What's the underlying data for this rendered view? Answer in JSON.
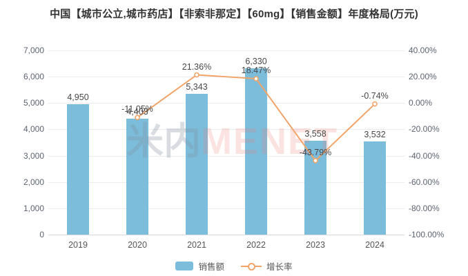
{
  "title": "中国【城市公立,城市药店】【非索非那定】【60mg】【销售金额】年度格局(万元)",
  "watermark": {
    "cn": "米内",
    "en": "MENET"
  },
  "legend": [
    {
      "label": "销售额"
    },
    {
      "label": "增长率"
    }
  ],
  "colors": {
    "bar": "#7cbddb",
    "line": "#f2a468",
    "marker_fill": "#ffffff",
    "title_text": "#333333",
    "axis_text": "#5c6370",
    "data_label": "#474747",
    "gridline": "#ebedf2",
    "axis_line": "#d4d8df"
  },
  "chart_data": {
    "type": "bar+line",
    "title": "中国【城市公立,城市药店】【非索非那定】【60mg】【销售金额】年度格局(万元)",
    "categories": [
      "2019",
      "2020",
      "2021",
      "2022",
      "2023",
      "2024"
    ],
    "series": [
      {
        "name": "销售额",
        "type": "bar",
        "axis": "left",
        "values": [
          4950,
          4403,
          5343,
          6330,
          3558,
          3532
        ],
        "labels": [
          "4,950",
          "4,403",
          "5,343",
          "6,330",
          "3,558",
          "3,532"
        ]
      },
      {
        "name": "增长率",
        "type": "line",
        "axis": "right",
        "values": [
          null,
          -11.05,
          21.36,
          18.47,
          -43.79,
          -0.74
        ],
        "labels": [
          null,
          "-11.05%",
          "21.36%",
          "18.47%",
          "-43.79%",
          "-0.74%"
        ]
      }
    ],
    "left_axis": {
      "min": 0,
      "max": 7000,
      "ticks": [
        "7,000",
        "6,000",
        "5,000",
        "4,000",
        "3,000",
        "2,000",
        "1,000",
        "0"
      ]
    },
    "right_axis": {
      "min": -100,
      "max": 40,
      "ticks": [
        "40.00%",
        "20.00%",
        "0.00%",
        "-20.00%",
        "-40.00%",
        "-60.00%",
        "-80.00%",
        "-100.00%"
      ]
    },
    "grid": true,
    "legend_position": "bottom"
  }
}
